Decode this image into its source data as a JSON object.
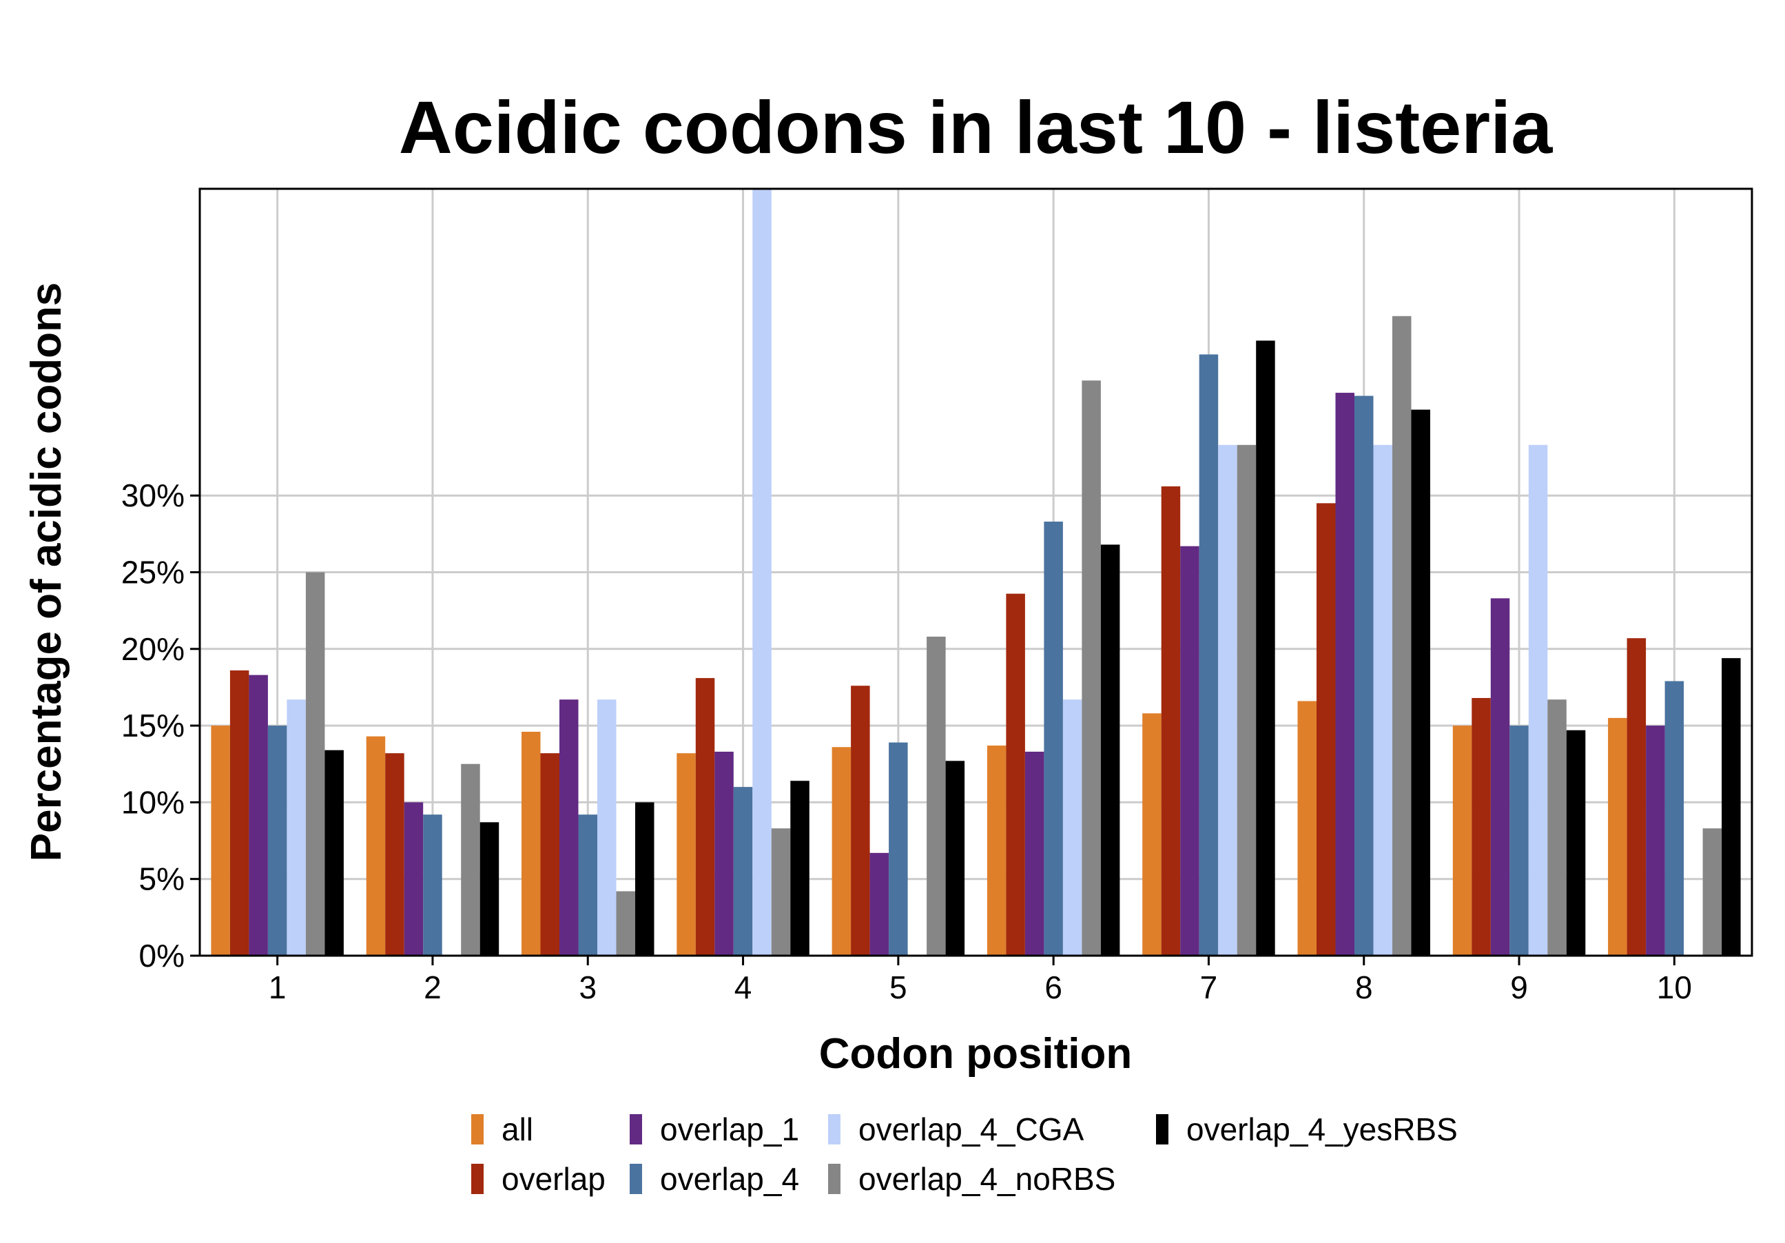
{
  "chart_data": {
    "type": "bar",
    "title": "Acidic codons in last 10 - listeria",
    "xlabel": "Codon position",
    "ylabel": "Percentage of acidic codons",
    "categories": [
      "1",
      "2",
      "3",
      "4",
      "5",
      "6",
      "7",
      "8",
      "9",
      "10"
    ],
    "ylim": [
      0,
      50
    ],
    "yticks": [
      0,
      5,
      10,
      15,
      20,
      25,
      30
    ],
    "ytick_labels": [
      "0%",
      "5%",
      "10%",
      "15%",
      "20%",
      "25%",
      "30%"
    ],
    "grid": true,
    "legend_position": "bottom",
    "series": [
      {
        "name": "all",
        "color": "#e07f2a",
        "values": [
          15.0,
          14.3,
          14.6,
          13.2,
          13.6,
          13.7,
          15.8,
          16.6,
          15.0,
          15.5
        ]
      },
      {
        "name": "overlap",
        "color": "#a2290d",
        "values": [
          18.6,
          13.2,
          13.2,
          18.1,
          17.6,
          23.6,
          30.6,
          29.5,
          16.8,
          20.7
        ]
      },
      {
        "name": "overlap_1",
        "color": "#622a83",
        "values": [
          18.3,
          10.0,
          16.7,
          13.3,
          6.7,
          13.3,
          26.7,
          36.7,
          23.3,
          15.0
        ]
      },
      {
        "name": "overlap_4",
        "color": "#4a739f",
        "values": [
          15.0,
          9.2,
          9.2,
          11.0,
          13.9,
          28.3,
          39.2,
          36.5,
          15.0,
          17.9
        ]
      },
      {
        "name": "overlap_4_CGA",
        "color": "#bdd0fa",
        "values": [
          16.7,
          0,
          16.7,
          50.0,
          0,
          16.7,
          33.3,
          33.3,
          33.3,
          0
        ]
      },
      {
        "name": "overlap_4_noRBS",
        "color": "#868686",
        "values": [
          25.0,
          12.5,
          4.2,
          8.3,
          20.8,
          37.5,
          33.3,
          41.7,
          16.7,
          8.3
        ]
      },
      {
        "name": "overlap_4_yesRBS",
        "color": "#000000",
        "values": [
          13.4,
          8.7,
          10.0,
          11.4,
          12.7,
          26.8,
          40.1,
          35.6,
          14.7,
          19.4
        ]
      }
    ]
  }
}
